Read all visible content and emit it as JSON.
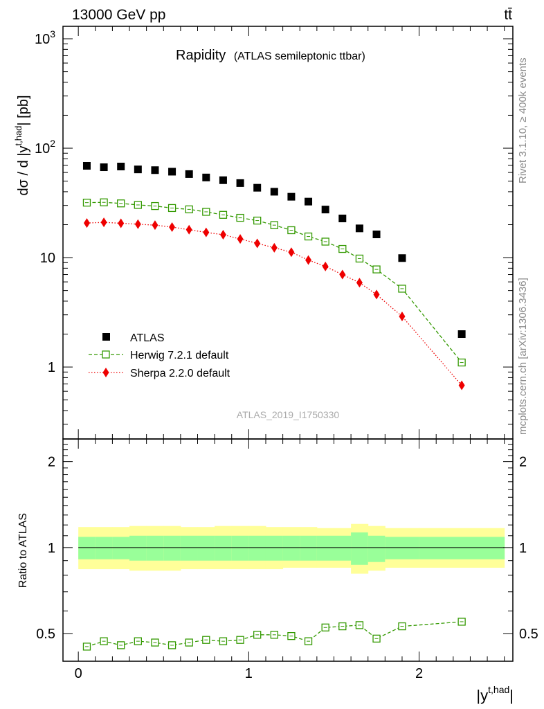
{
  "header": {
    "process": "13000 GeV pp",
    "final_state": "tt̄"
  },
  "side_labels": {
    "rivet": "Rivet 3.1.10, ≥ 400k events",
    "mcplots": "mcplots.cern.ch [arXiv:1306.3436]"
  },
  "top_panel": {
    "title": "Rapidity",
    "subtitle": "(ATLAS semileptonic ttbar)",
    "ylabel_prefix": "dσ / d |y",
    "ylabel_sup": "t,had",
    "ylabel_suffix": "| [pb]",
    "analysis_id": "ATLAS_2019_I1750330",
    "yticks": [
      {
        "label": "10",
        "sup": "3",
        "value": 1000
      },
      {
        "label": "10",
        "sup": "2",
        "value": 100
      },
      {
        "label": "10",
        "sup": "",
        "value": 10
      },
      {
        "label": "1",
        "sup": "",
        "value": 1
      }
    ]
  },
  "bottom_panel": {
    "ylabel": "Ratio to ATLAS",
    "yticks": [
      "2",
      "1",
      "0.5"
    ]
  },
  "x_axis": {
    "label": "|y",
    "label_sup": "t,had",
    "label_suffix": "|",
    "ticks": [
      "0",
      "1",
      "2"
    ]
  },
  "legend": [
    {
      "name": "ATLAS",
      "style": "data"
    },
    {
      "name": "Herwig 7.2.1 default",
      "style": "herwig"
    },
    {
      "name": "Sherpa 2.2.0 default",
      "style": "sherpa"
    }
  ],
  "colors": {
    "herwig": "#339900",
    "sherpa": "#ee0000",
    "band_inner": "#99ff99",
    "band_outer": "#ffff99"
  },
  "chart_data": {
    "type": "scatter",
    "x_scale": "linear",
    "y_scale": "log",
    "xlim": [
      -0.09,
      2.55
    ],
    "ylim": [
      0.22,
      1300
    ],
    "ratio_ylim": [
      0.4,
      2.4
    ],
    "ratio_y_scale": "log",
    "bins": [
      [
        0,
        0.1
      ],
      [
        0.1,
        0.2
      ],
      [
        0.2,
        0.3
      ],
      [
        0.3,
        0.4
      ],
      [
        0.4,
        0.5
      ],
      [
        0.5,
        0.6
      ],
      [
        0.6,
        0.7
      ],
      [
        0.7,
        0.8
      ],
      [
        0.8,
        0.9
      ],
      [
        0.9,
        1.0
      ],
      [
        1.0,
        1.1
      ],
      [
        1.1,
        1.2
      ],
      [
        1.2,
        1.3
      ],
      [
        1.3,
        1.4
      ],
      [
        1.4,
        1.5
      ],
      [
        1.5,
        1.6
      ],
      [
        1.6,
        1.7
      ],
      [
        1.7,
        1.8
      ],
      [
        1.8,
        2.0
      ],
      [
        2.0,
        2.5
      ]
    ],
    "x": [
      0.05,
      0.15,
      0.25,
      0.35,
      0.45,
      0.55,
      0.65,
      0.75,
      0.85,
      0.95,
      1.05,
      1.15,
      1.25,
      1.35,
      1.45,
      1.55,
      1.65,
      1.75,
      1.9,
      2.25
    ],
    "series": [
      {
        "name": "ATLAS",
        "values": [
          69,
          67,
          68,
          64,
          63,
          61,
          58,
          54,
          51,
          48,
          43.5,
          40,
          36,
          32.5,
          27.5,
          22.8,
          18.5,
          16.3,
          9.9,
          2.0
        ]
      },
      {
        "name": "Herwig 7.2.1 default",
        "values": [
          31.8,
          32.0,
          31.3,
          30.3,
          29.6,
          28.4,
          27.6,
          26.2,
          24.6,
          23.1,
          21.8,
          19.8,
          17.8,
          15.6,
          14.0,
          12.0,
          9.8,
          7.8,
          5.2,
          1.1
        ]
      },
      {
        "name": "Sherpa 2.2.0 default",
        "values": [
          20.7,
          21.0,
          20.6,
          20.2,
          19.8,
          19.0,
          18.0,
          17.0,
          16.2,
          14.8,
          13.5,
          12.3,
          11.2,
          9.5,
          8.3,
          7.0,
          5.9,
          4.6,
          2.9,
          0.68
        ]
      }
    ],
    "ratio": {
      "herwig": [
        0.45,
        0.47,
        0.455,
        0.47,
        0.465,
        0.455,
        0.465,
        0.475,
        0.47,
        0.475,
        0.495,
        0.495,
        0.49,
        0.47,
        0.525,
        0.53,
        0.535,
        0.48,
        0.53,
        0.55
      ],
      "band_inner": [
        [
          0.91,
          1.09
        ],
        [
          0.91,
          1.09
        ],
        [
          0.91,
          1.09
        ],
        [
          0.9,
          1.1
        ],
        [
          0.9,
          1.1
        ],
        [
          0.9,
          1.1
        ],
        [
          0.9,
          1.1
        ],
        [
          0.9,
          1.1
        ],
        [
          0.9,
          1.1
        ],
        [
          0.9,
          1.1
        ],
        [
          0.9,
          1.1
        ],
        [
          0.9,
          1.1
        ],
        [
          0.9,
          1.1
        ],
        [
          0.9,
          1.1
        ],
        [
          0.9,
          1.1
        ],
        [
          0.9,
          1.1
        ],
        [
          0.87,
          1.13
        ],
        [
          0.89,
          1.1
        ],
        [
          0.91,
          1.09
        ],
        [
          0.91,
          1.09
        ]
      ],
      "band_outer": [
        [
          0.84,
          1.18
        ],
        [
          0.84,
          1.18
        ],
        [
          0.84,
          1.18
        ],
        [
          0.83,
          1.19
        ],
        [
          0.83,
          1.19
        ],
        [
          0.83,
          1.19
        ],
        [
          0.84,
          1.18
        ],
        [
          0.84,
          1.18
        ],
        [
          0.84,
          1.19
        ],
        [
          0.84,
          1.19
        ],
        [
          0.84,
          1.19
        ],
        [
          0.84,
          1.18
        ],
        [
          0.85,
          1.18
        ],
        [
          0.85,
          1.18
        ],
        [
          0.85,
          1.17
        ],
        [
          0.85,
          1.17
        ],
        [
          0.81,
          1.21
        ],
        [
          0.83,
          1.19
        ],
        [
          0.85,
          1.17
        ],
        [
          0.85,
          1.17
        ]
      ]
    }
  }
}
